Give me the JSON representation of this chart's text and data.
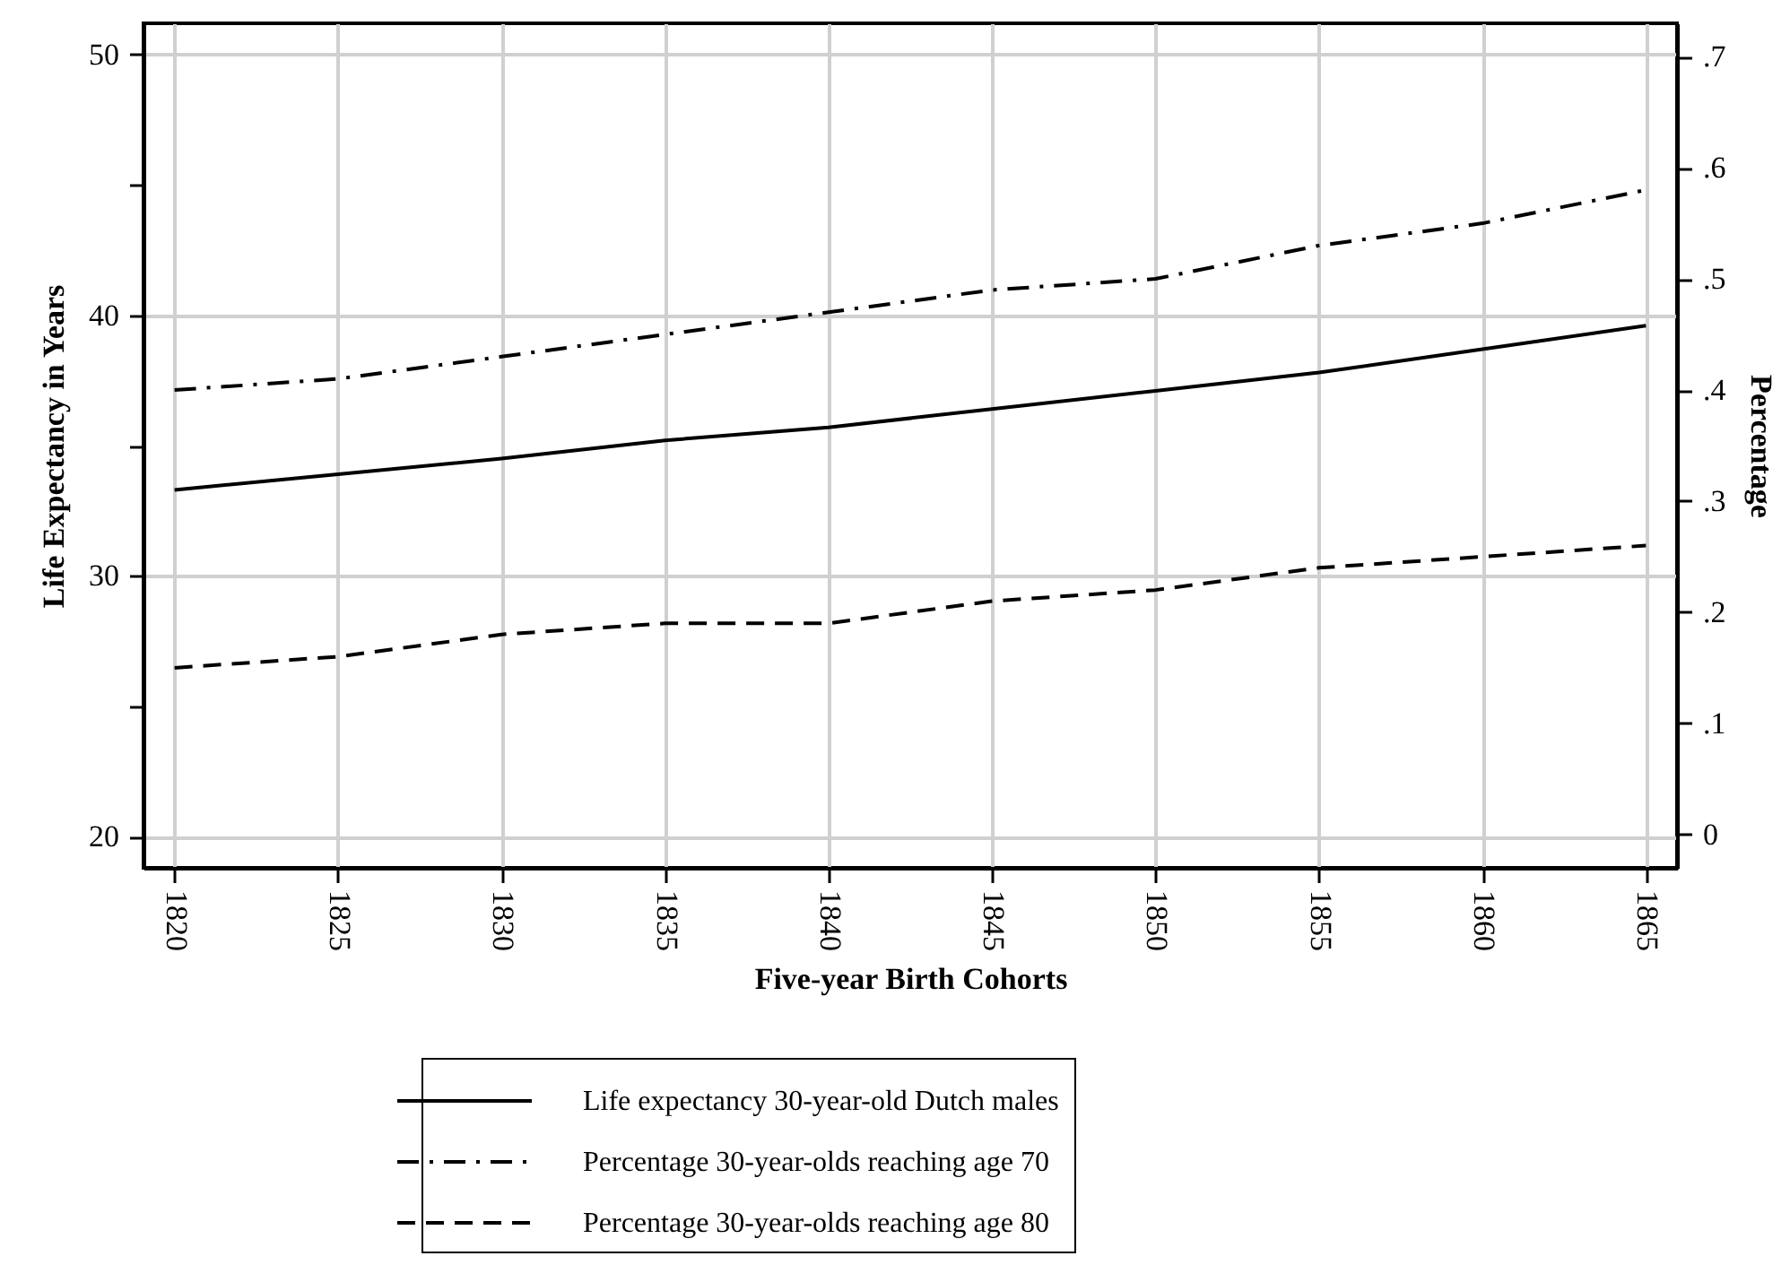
{
  "chart_data": {
    "type": "line",
    "xlabel": "Five-year Birth Cohorts",
    "ylabel": "Life Expectancy in Years",
    "y2label": "Percentage",
    "categories": [
      "1820",
      "1825",
      "1830",
      "1835",
      "1840",
      "1845",
      "1850",
      "1855",
      "1860",
      "1865"
    ],
    "series": [
      {
        "name": "Life expectancy 30-year-old Dutch males",
        "color": "#000000",
        "line_style": "solid",
        "values": [
          33.3,
          33.9,
          34.5,
          35.2,
          35.7,
          36.4,
          37.1,
          37.8,
          38.7,
          39.6
        ]
      },
      {
        "name": "Percentage 30-year-olds reaching age 70",
        "color": "#000000",
        "line_style": "dashdot",
        "axis": "y2",
        "values": [
          0.4,
          0.41,
          0.43,
          0.45,
          0.47,
          0.49,
          0.5,
          0.53,
          0.55,
          0.58
        ]
      },
      {
        "name": "Percentage 30-year-olds reaching age 80",
        "color": "#000000",
        "line_style": "dashed",
        "axis": "y2",
        "values": [
          0.15,
          0.16,
          0.18,
          0.19,
          0.19,
          0.21,
          0.22,
          0.24,
          0.25,
          0.26
        ]
      }
    ],
    "ylim": [
      18.8,
      51.2
    ],
    "yticks": [
      20,
      {
        "value": 25,
        "label": null
      },
      30,
      {
        "value": 35,
        "label": null
      },
      40,
      {
        "value": 45,
        "label": null
      },
      50
    ],
    "y2lim": [
      -0.03,
      0.73
    ],
    "y2ticks": [
      0,
      {
        "value": 0.1,
        "label": ".1"
      },
      {
        "value": 0.2,
        "label": ".2"
      },
      {
        "value": 0.3,
        "label": ".3"
      },
      {
        "value": 0.4,
        "label": ".4"
      },
      {
        "value": 0.5,
        "label": ".5"
      },
      {
        "value": 0.6,
        "label": ".6"
      },
      {
        "value": 0.7,
        "label": ".7"
      }
    ],
    "grid": true,
    "legend": "bottom"
  }
}
